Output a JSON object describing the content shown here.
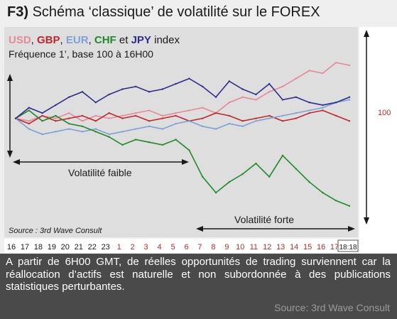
{
  "heading": {
    "prefix": "F3)",
    "text": "Schéma ‘classique’ de volatilité sur le FOREX"
  },
  "chart_data": {
    "type": "line",
    "title_series": [
      {
        "label": "USD",
        "color": "#e8879a"
      },
      {
        "label": "GBP",
        "color": "#c0272d"
      },
      {
        "label": "EUR",
        "color": "#7fa0d8"
      },
      {
        "label": "CHF",
        "color": "#1f8a2a"
      },
      {
        "label": "JPY",
        "color": "#2e2e8a"
      }
    ],
    "title_separators": [
      ", ",
      ", ",
      ", ",
      " et ",
      " index"
    ],
    "subtitle": "Fréquence 1’, base 100 à 16H00",
    "y_right_label": "100",
    "annotations": {
      "low": "Volatilité faible",
      "high": "Volatilité forte",
      "source": "Source : 3rd  Wave Consult"
    },
    "x_ticks": [
      {
        "label": "16",
        "color": "#1a1a1a"
      },
      {
        "label": "17",
        "color": "#1a1a1a"
      },
      {
        "label": "18",
        "color": "#1a1a1a"
      },
      {
        "label": "19",
        "color": "#1a1a1a"
      },
      {
        "label": "20",
        "color": "#1a1a1a"
      },
      {
        "label": "21",
        "color": "#1a1a1a"
      },
      {
        "label": "22",
        "color": "#1a1a1a"
      },
      {
        "label": "23",
        "color": "#1a1a1a"
      },
      {
        "label": "1",
        "color": "#c0272d"
      },
      {
        "label": "2",
        "color": "#c0272d"
      },
      {
        "label": "3",
        "color": "#c0272d"
      },
      {
        "label": "4",
        "color": "#c0272d"
      },
      {
        "label": "5",
        "color": "#c0272d"
      },
      {
        "label": "6",
        "color": "#c0272d"
      },
      {
        "label": "7",
        "color": "#c0272d"
      },
      {
        "label": "8",
        "color": "#c0272d"
      },
      {
        "label": "9",
        "color": "#c0272d"
      },
      {
        "label": "10",
        "color": "#c0272d"
      },
      {
        "label": "11",
        "color": "#c0272d"
      },
      {
        "label": "12",
        "color": "#c0272d"
      },
      {
        "label": "13",
        "color": "#c0272d"
      },
      {
        "label": "14",
        "color": "#c0272d"
      },
      {
        "label": "15",
        "color": "#c0272d"
      },
      {
        "label": "16",
        "color": "#c0272d"
      },
      {
        "label": "17",
        "color": "#c0272d"
      },
      {
        "label": "18:18",
        "color": "#1a1a1a"
      }
    ],
    "series": [
      {
        "name": "USD",
        "color": "#e8879a",
        "values": [
          100.0,
          99.9,
          100.1,
          100.0,
          100.2,
          99.9,
          100.1,
          100.0,
          100.1,
          100.2,
          100.3,
          100.1,
          100.2,
          100.3,
          100.4,
          100.2,
          100.6,
          100.8,
          100.7,
          101.0,
          101.2,
          101.5,
          101.8,
          101.7,
          102.1,
          102.0
        ]
      },
      {
        "name": "GBP",
        "color": "#c0272d",
        "values": [
          100.0,
          99.8,
          100.1,
          99.9,
          100.0,
          100.1,
          99.9,
          100.2,
          100.0,
          100.1,
          99.9,
          100.0,
          100.1,
          99.9,
          100.0,
          100.2,
          100.1,
          99.9,
          100.0,
          100.1,
          99.9,
          100.0,
          100.2,
          100.3,
          100.1,
          99.9
        ]
      },
      {
        "name": "EUR",
        "color": "#7fa0d8",
        "values": [
          100.0,
          99.6,
          99.4,
          99.5,
          99.6,
          99.5,
          99.6,
          99.4,
          99.5,
          99.6,
          99.7,
          99.6,
          99.8,
          99.9,
          99.7,
          99.6,
          99.8,
          99.7,
          99.9,
          100.0,
          100.1,
          100.2,
          100.3,
          100.4,
          100.6,
          100.7
        ]
      },
      {
        "name": "CHF",
        "color": "#1f8a2a",
        "values": [
          100.0,
          100.3,
          99.9,
          100.1,
          99.8,
          99.7,
          99.5,
          99.3,
          99.0,
          99.2,
          99.1,
          99.0,
          99.2,
          98.8,
          97.8,
          97.2,
          97.6,
          97.9,
          98.3,
          97.8,
          98.6,
          98.1,
          97.6,
          97.2,
          96.9,
          96.7
        ]
      },
      {
        "name": "JPY",
        "color": "#2e2e8a",
        "values": [
          100.0,
          100.4,
          100.2,
          100.5,
          100.8,
          101.0,
          100.6,
          100.9,
          101.1,
          101.2,
          101.0,
          101.1,
          101.3,
          101.5,
          101.2,
          100.8,
          101.4,
          101.1,
          100.9,
          101.3,
          100.7,
          100.8,
          100.6,
          100.5,
          100.6,
          100.8
        ]
      }
    ],
    "ylim": [
      96.0,
      102.8
    ]
  },
  "caption": "A partir de 6H00 GMT, de réelles opportunités de trading surviennent car la réallocation d’actifs est naturelle et non subordonnée à des publications statistiques perturbantes.",
  "source": "Source: 3rd Wave Consult"
}
